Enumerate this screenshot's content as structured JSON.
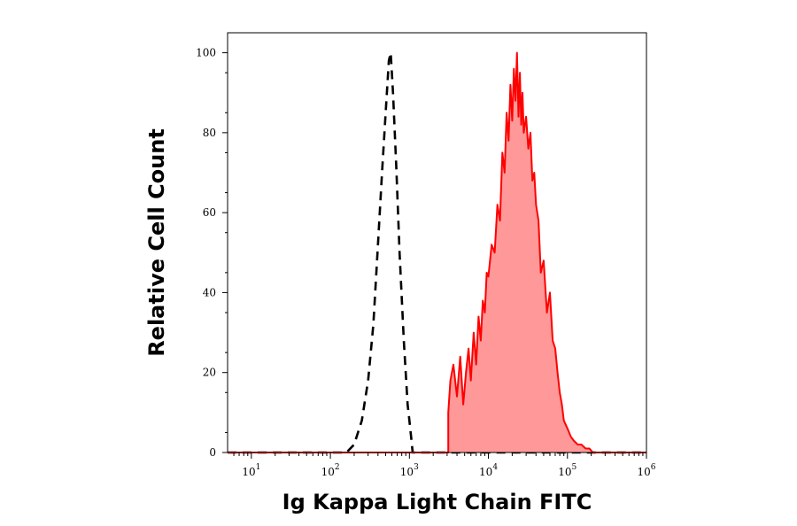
{
  "chart_data": {
    "type": "area",
    "title": "",
    "xlabel": "Ig Kappa Light Chain FITC",
    "ylabel": "Relative Cell Count",
    "xscale": "log",
    "xlim": [
      5,
      1000000
    ],
    "ylim": [
      0,
      105
    ],
    "x_ticks": [
      {
        "base": "10",
        "exp": "1",
        "value": 10
      },
      {
        "base": "10",
        "exp": "2",
        "value": 100
      },
      {
        "base": "10",
        "exp": "3",
        "value": 1000
      },
      {
        "base": "10",
        "exp": "4",
        "value": 10000
      },
      {
        "base": "10",
        "exp": "5",
        "value": 100000
      },
      {
        "base": "10",
        "exp": "6",
        "value": 1000000
      }
    ],
    "y_ticks": [
      0,
      20,
      40,
      60,
      80,
      100
    ],
    "series": [
      {
        "style": "dashed-outline",
        "color": "#000000",
        "x": [
          5,
          160,
          200,
          250,
          300,
          350,
          400,
          450,
          500,
          550,
          580,
          620,
          680,
          750,
          850,
          950,
          1000,
          1050,
          1100,
          1000000
        ],
        "y": [
          0,
          0,
          2,
          8,
          18,
          32,
          52,
          70,
          85,
          98,
          100,
          90,
          72,
          50,
          28,
          12,
          8,
          4,
          0,
          0
        ]
      },
      {
        "style": "filled-outline",
        "color": "#ff0000",
        "fill": "#ff9999",
        "x": [
          5,
          3100,
          3100,
          3300,
          3600,
          4000,
          4400,
          4800,
          5200,
          5600,
          6000,
          6500,
          7000,
          7500,
          8000,
          8500,
          9000,
          9500,
          10000,
          11000,
          12000,
          13000,
          14000,
          15000,
          16000,
          17000,
          18000,
          19000,
          20000,
          21000,
          22000,
          23000,
          24000,
          25000,
          26000,
          27000,
          28000,
          30000,
          32000,
          34000,
          36000,
          38000,
          40000,
          43000,
          46000,
          50000,
          55000,
          60000,
          65000,
          70000,
          75000,
          80000,
          85000,
          90000,
          100000,
          110000,
          120000,
          135000,
          150000,
          170000,
          190000,
          210000,
          1000000
        ],
        "y": [
          0,
          0,
          10,
          18,
          22,
          14,
          24,
          12,
          20,
          26,
          18,
          30,
          22,
          34,
          28,
          38,
          35,
          45,
          44,
          52,
          50,
          62,
          58,
          75,
          70,
          85,
          78,
          92,
          83,
          96,
          88,
          100,
          84,
          95,
          82,
          90,
          80,
          84,
          76,
          80,
          68,
          70,
          62,
          58,
          45,
          48,
          35,
          40,
          28,
          26,
          20,
          15,
          12,
          8,
          6,
          4,
          3,
          2,
          2,
          1,
          1,
          0,
          0
        ]
      }
    ]
  }
}
